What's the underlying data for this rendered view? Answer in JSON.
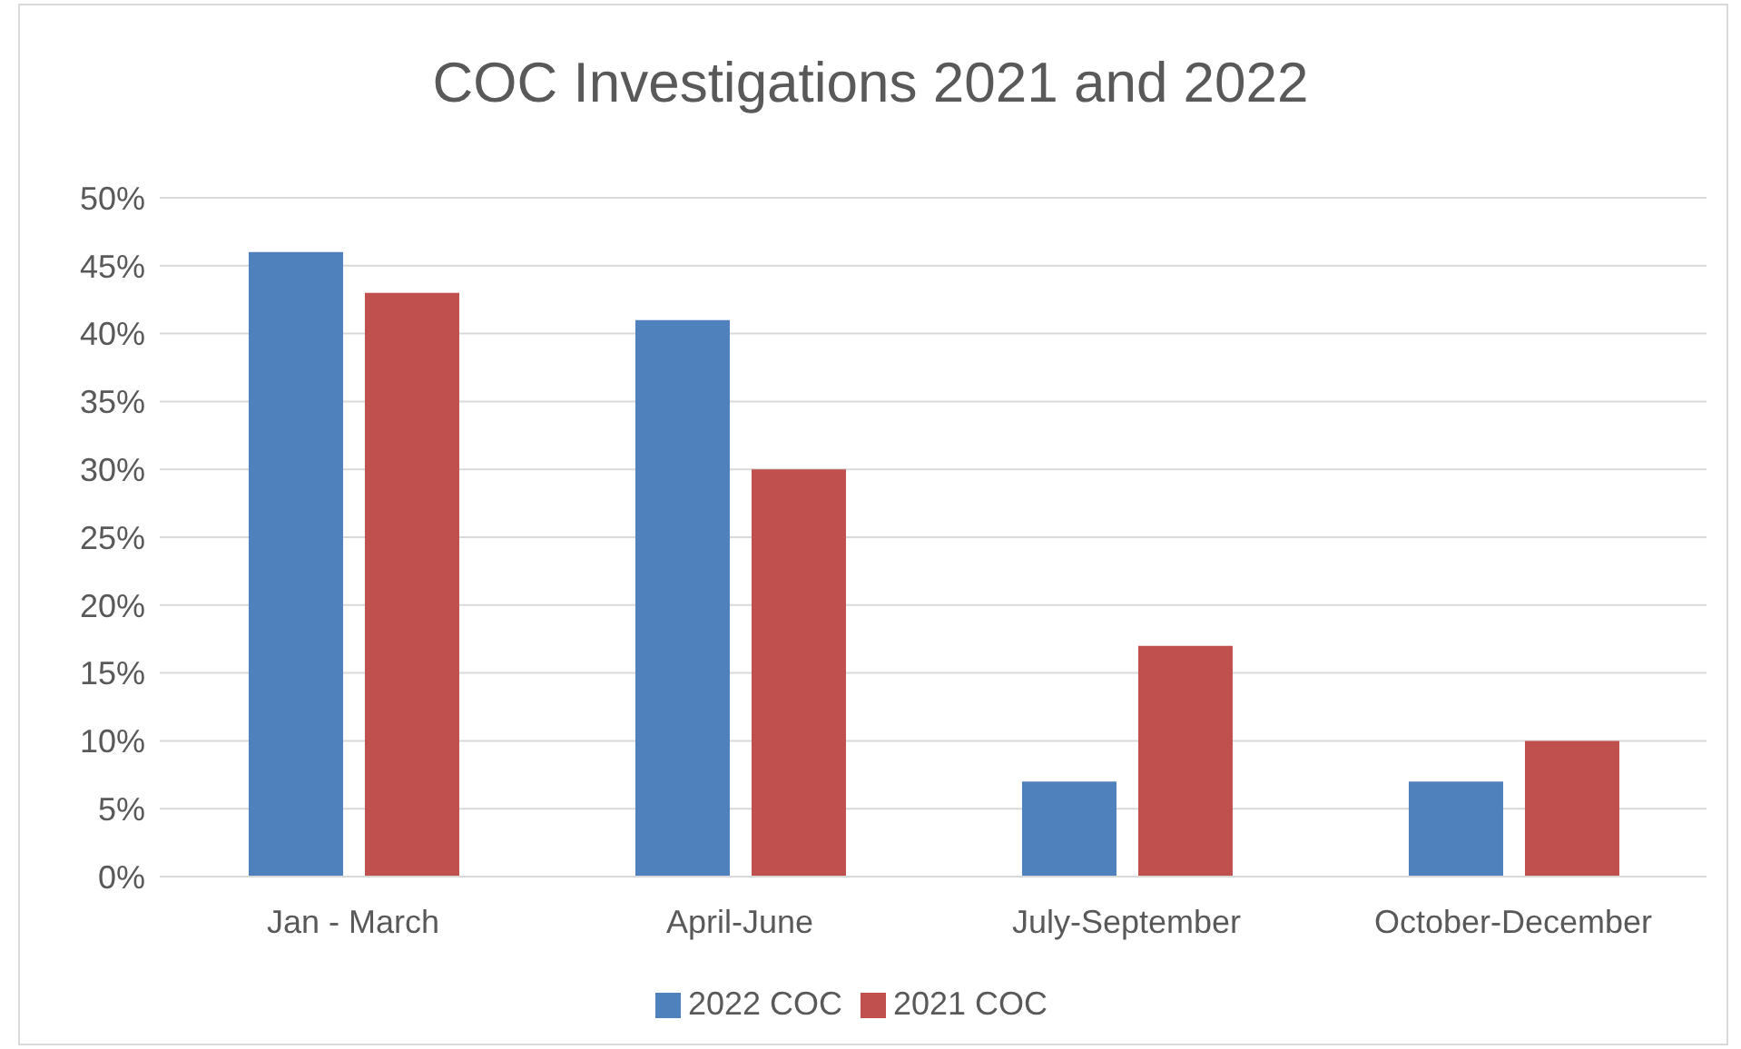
{
  "chart_data": {
    "type": "bar",
    "title": "COC Investigations 2021 and 2022",
    "categories": [
      "Jan - March",
      "April-June",
      "July-September",
      "October-December"
    ],
    "series": [
      {
        "name": "2022 COC",
        "color": "#4f81bd",
        "values": [
          46,
          41,
          7,
          7
        ]
      },
      {
        "name": "2021 COC",
        "color": "#c0504d",
        "values": [
          43,
          30,
          17,
          10
        ]
      }
    ],
    "ylim": [
      0,
      50
    ],
    "yticks": [
      {
        "value": 0,
        "label": "0%"
      },
      {
        "value": 5,
        "label": "5%"
      },
      {
        "value": 10,
        "label": "10%"
      },
      {
        "value": 15,
        "label": "15%"
      },
      {
        "value": 20,
        "label": "20%"
      },
      {
        "value": 25,
        "label": "25%"
      },
      {
        "value": 30,
        "label": "30%"
      },
      {
        "value": 35,
        "label": "35%"
      },
      {
        "value": 40,
        "label": "40%"
      },
      {
        "value": 45,
        "label": "45%"
      },
      {
        "value": 50,
        "label": "50%"
      }
    ],
    "grid": "y",
    "legend": "bottom"
  }
}
